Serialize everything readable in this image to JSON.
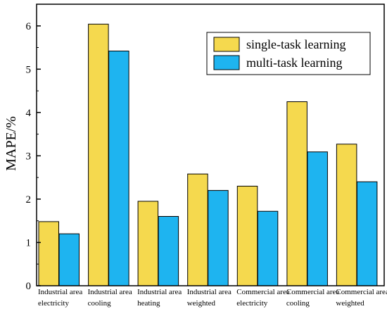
{
  "chart_data": {
    "type": "bar",
    "title": "",
    "xlabel": "",
    "ylabel": "MAPE/%",
    "ylim": [
      0,
      6.5
    ],
    "yticks": [
      "0",
      "1",
      "2",
      "3",
      "4",
      "5",
      "6"
    ],
    "grid": false,
    "legend_position": "top-right",
    "categories": [
      [
        "Industrial area",
        "electricity"
      ],
      [
        "Industrial area",
        "cooling"
      ],
      [
        "Industrial area",
        "heating"
      ],
      [
        "Industrial area",
        "weighted"
      ],
      [
        "Commercial area",
        "electricity"
      ],
      [
        "Commercial area",
        "cooling"
      ],
      [
        "Commercial area",
        "weighted"
      ]
    ],
    "series": [
      {
        "name": "single-task learning",
        "color": "#F5D94E",
        "values": [
          1.48,
          6.04,
          1.95,
          2.58,
          2.3,
          4.25,
          3.27
        ]
      },
      {
        "name": "multi-task learning",
        "color": "#1EB4F0",
        "values": [
          1.2,
          5.42,
          1.6,
          2.2,
          1.72,
          3.09,
          2.4
        ]
      }
    ]
  }
}
